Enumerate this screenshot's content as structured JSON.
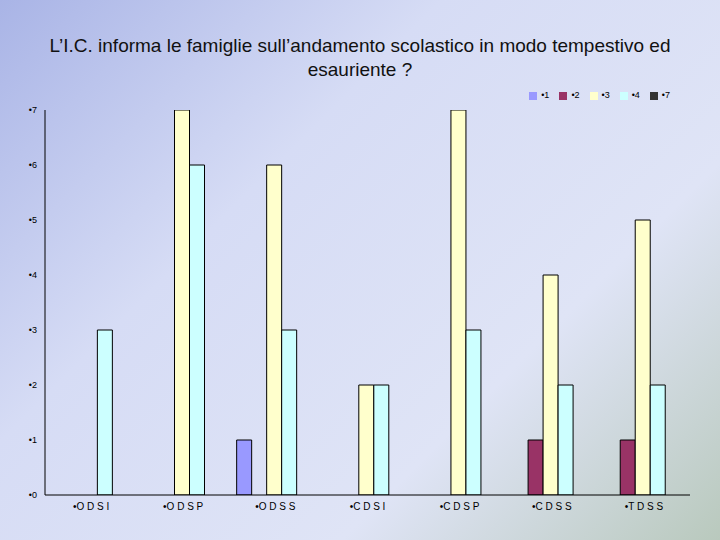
{
  "chart_data": {
    "type": "bar",
    "title": "L’I.C. informa le famiglie sull’andamento scolastico in modo tempestivo ed esauriente ?",
    "categories": [
      "•O D S I",
      "•O D S P",
      "•O D S S",
      "•C D S I",
      "•C D S P",
      "•C D S S",
      "•T D S S"
    ],
    "series": [
      {
        "name": "•1",
        "color": "#9999ff",
        "values": [
          null,
          null,
          1,
          null,
          null,
          null,
          null
        ]
      },
      {
        "name": "•2",
        "color": "#993366",
        "values": [
          null,
          null,
          null,
          null,
          null,
          1,
          1
        ]
      },
      {
        "name": "•3",
        "color": "#ffffcc",
        "values": [
          null,
          7,
          6,
          2,
          7,
          4,
          5
        ]
      },
      {
        "name": "•4",
        "color": "#ccffff",
        "values": [
          3,
          6,
          3,
          2,
          3,
          2,
          2
        ]
      },
      {
        "name": "•7",
        "color": "#333333",
        "values": [
          null,
          null,
          null,
          null,
          null,
          null,
          null
        ]
      }
    ],
    "ylim": [
      0,
      7
    ],
    "yticks": [
      {
        "value": 0,
        "label": "•0"
      },
      {
        "value": 1,
        "label": "•1"
      },
      {
        "value": 2,
        "label": "•2"
      },
      {
        "value": 3,
        "label": "•3"
      },
      {
        "value": 4,
        "label": "•4"
      },
      {
        "value": 5,
        "label": "•5"
      },
      {
        "value": 6,
        "label": "•6"
      },
      {
        "value": 7,
        "label": "•7"
      }
    ],
    "grid": false,
    "legend": "upper right"
  }
}
